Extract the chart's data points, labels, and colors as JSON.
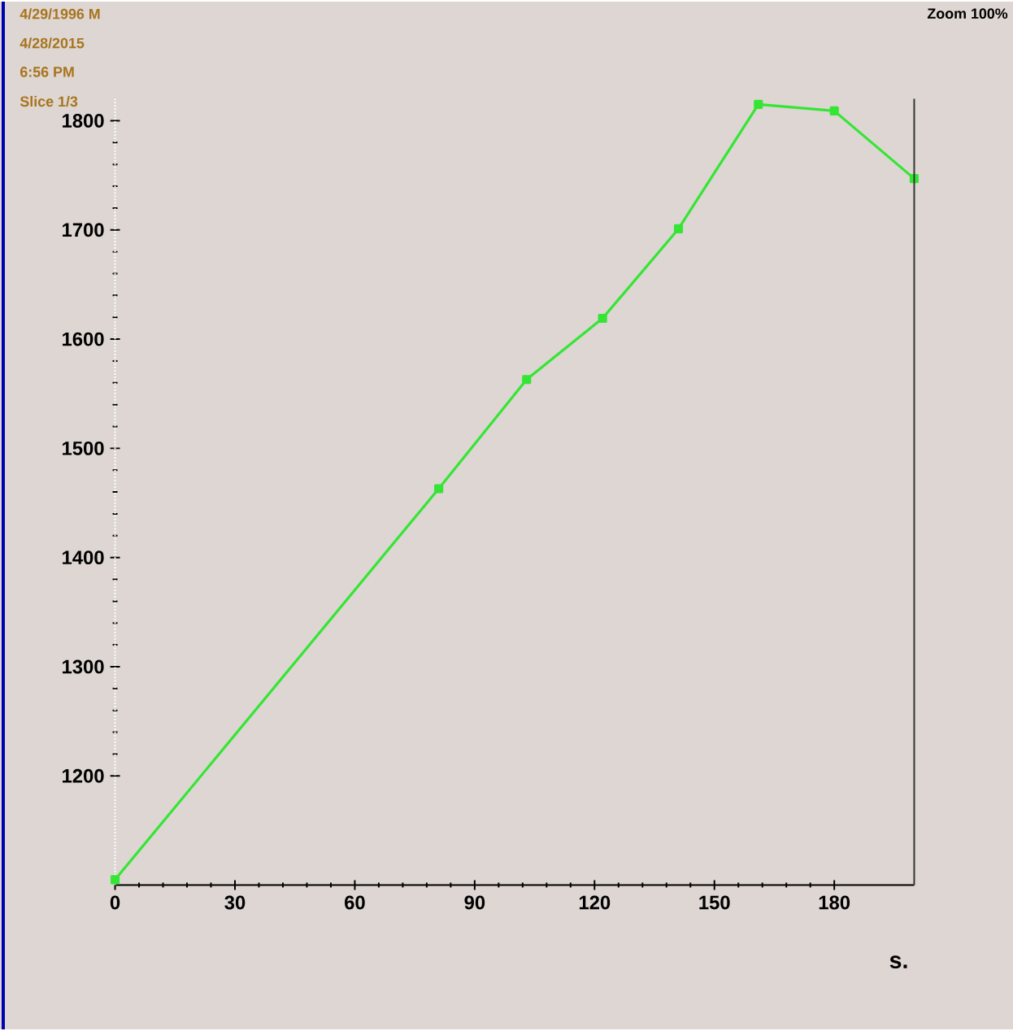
{
  "chart_data": {
    "type": "line",
    "xlabel": "s.",
    "annotations": [
      "4/29/1996  M",
      "4/28/2015",
      "6:56 PM",
      "Slice 1/3",
      "Zoom 100%"
    ],
    "x": [
      0,
      81,
      103,
      122,
      141,
      161,
      180,
      200
    ],
    "series": [
      {
        "color": "#33e633",
        "values": [
          1105,
          1463,
          1563,
          1619,
          1701,
          1815,
          1809,
          1747
        ]
      }
    ],
    "marker": "square",
    "line_style": "solid",
    "xlim": [
      0,
      200
    ],
    "xticks": [
      0,
      30,
      60,
      90,
      120,
      150,
      180
    ],
    "ylim": [
      1100,
      1820
    ],
    "yticks": [
      1200,
      1300,
      1400,
      1500,
      1600,
      1700,
      1800
    ]
  }
}
